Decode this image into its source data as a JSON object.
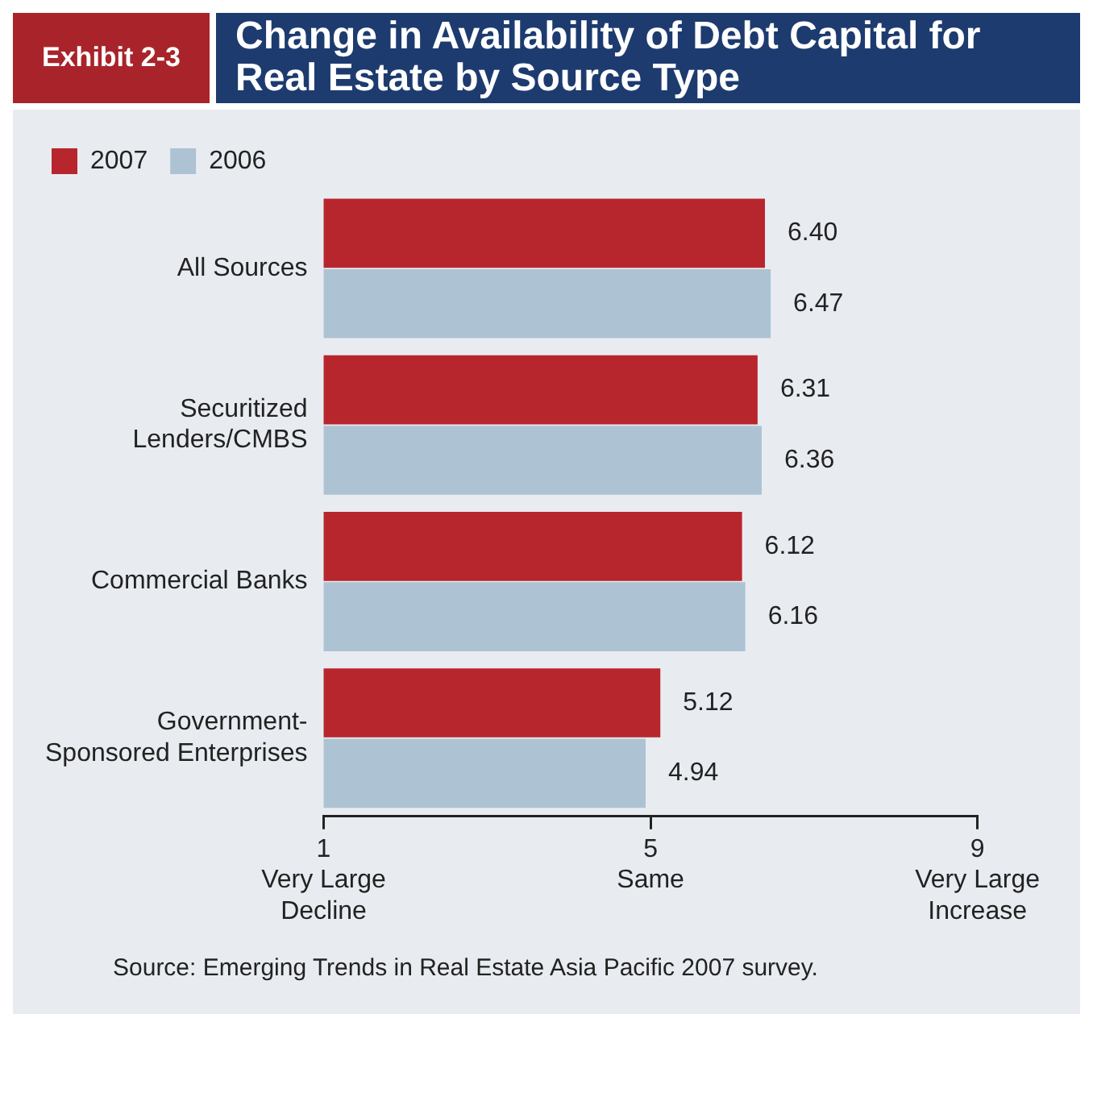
{
  "chart_data": {
    "type": "bar",
    "orientation": "horizontal",
    "title": "Change in Availability of Debt Capital for Real Estate by Source Type",
    "subtitle": "Exhibit 2-3",
    "categories": [
      "All Sources",
      "Securitized Lenders/CMBS",
      "Commercial Banks",
      "Government-Sponsored Enterprises"
    ],
    "series": [
      {
        "name": "2007",
        "color": "#b8262d",
        "values": [
          6.4,
          6.31,
          6.12,
          5.12
        ],
        "value_labels": [
          "6.40",
          "6.31",
          "6.12",
          "5.12"
        ]
      },
      {
        "name": "2006",
        "color": "#adc3d3",
        "values": [
          6.47,
          6.36,
          6.16,
          4.94
        ],
        "value_labels": [
          "6.47",
          "6.36",
          "6.16",
          "4.94"
        ]
      }
    ],
    "xlim": [
      1,
      9
    ],
    "xticks": [
      {
        "value": 1,
        "label": "1\nVery Large\nDecline"
      },
      {
        "value": 5,
        "label": "5\nSame"
      },
      {
        "value": 9,
        "label": "9\nVery Large\nIncrease"
      }
    ],
    "grid": false,
    "legend": "top left",
    "annotations": [
      "Source: Emerging Trends in Real Estate Asia Pacific 2007 survey."
    ]
  }
}
